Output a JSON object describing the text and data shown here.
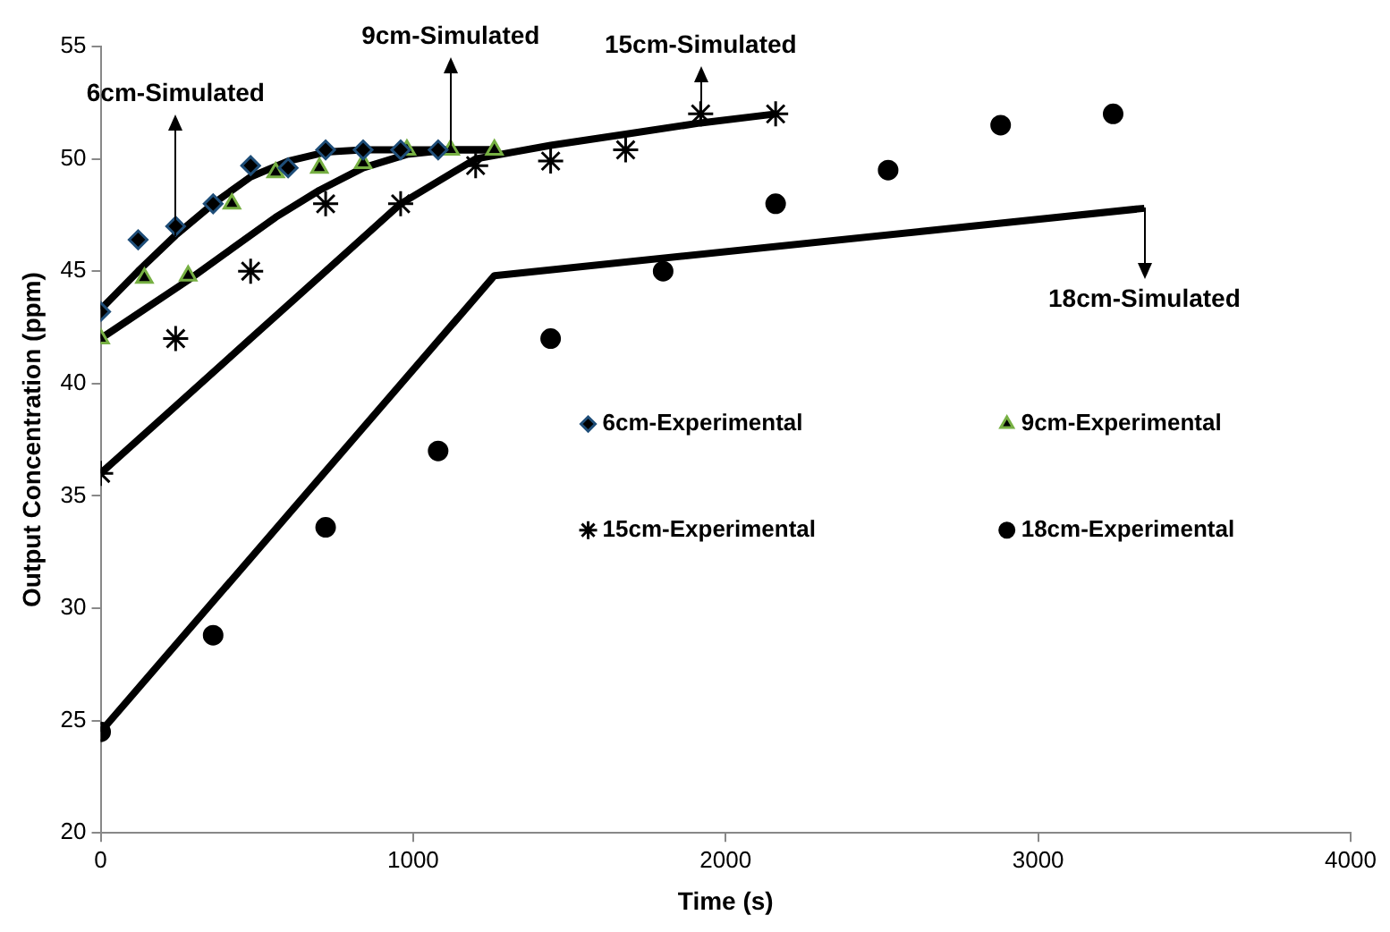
{
  "chart_data": {
    "type": "scatter",
    "xlabel": "Time (s)",
    "ylabel": "Output Concentration (ppm)",
    "xlim": [
      0,
      4000
    ],
    "xticks": [
      0,
      1000,
      2000,
      3000,
      4000
    ],
    "ylim": [
      20,
      55
    ],
    "yticks": [
      20,
      25,
      30,
      35,
      40,
      45,
      50,
      55
    ],
    "grid": false,
    "legend": "right",
    "series": [
      {
        "name": "6cm-Experimental",
        "marker": "diamond",
        "color": "#1f4e79",
        "x": [
          0,
          120,
          240,
          360,
          480,
          600,
          720,
          840,
          960,
          1080
        ],
        "values": [
          43.2,
          46.4,
          47,
          48,
          49.7,
          49.6,
          50.4,
          50.4,
          50.4,
          50.4
        ]
      },
      {
        "name": "9cm-Experimental",
        "marker": "triangle",
        "color": "#77b043",
        "x": [
          0,
          140,
          280,
          420,
          560,
          700,
          840,
          980,
          1120,
          1260
        ],
        "values": [
          42,
          44.7,
          44.8,
          48,
          49.4,
          49.6,
          49.8,
          50.4,
          50.4,
          50.4
        ]
      },
      {
        "name": "15cm-Experimental",
        "marker": "cross",
        "color": "#000000",
        "x": [
          0,
          240,
          480,
          720,
          960,
          1200,
          1440,
          1680,
          1920,
          2160
        ],
        "values": [
          36,
          42,
          45,
          48,
          48,
          49.7,
          49.9,
          50.4,
          52,
          52
        ]
      },
      {
        "name": "18cm-Experimental",
        "marker": "circle",
        "color": "#000000",
        "x": [
          0,
          360,
          720,
          1080,
          1440,
          1800,
          2160,
          2520,
          2880,
          3240
        ],
        "values": [
          24.5,
          28.8,
          33.6,
          37,
          42,
          45,
          48,
          49.5,
          51.5,
          52
        ]
      },
      {
        "name": "6cm-Simulated",
        "type": "line",
        "marker": "none",
        "color": "#000000",
        "x": [
          0,
          120,
          240,
          360,
          480,
          600,
          720,
          840,
          1080,
          1260
        ],
        "values": [
          43.3,
          45,
          46.6,
          48,
          49.2,
          49.9,
          50.3,
          50.4,
          50.4,
          50.4
        ]
      },
      {
        "name": "9cm-Simulated",
        "type": "line",
        "marker": "none",
        "color": "#000000",
        "x": [
          0,
          140,
          280,
          420,
          560,
          700,
          840,
          980,
          1120,
          1260
        ],
        "values": [
          42,
          43.3,
          44.6,
          46,
          47.4,
          48.6,
          49.6,
          50.2,
          50.4,
          50.4
        ]
      },
      {
        "name": "15cm-Simulated",
        "type": "line",
        "marker": "none",
        "color": "#000000",
        "x": [
          0,
          240,
          480,
          720,
          960,
          1200,
          1440,
          1680,
          1920,
          2160
        ],
        "values": [
          36,
          39,
          42,
          45,
          48,
          50,
          50.6,
          51.1,
          51.6,
          52
        ]
      },
      {
        "name": "18cm-Simulated",
        "type": "line",
        "marker": "none",
        "color": "#000000",
        "x": [
          0,
          1260,
          3340
        ],
        "values": [
          24.5,
          44.8,
          47.8
        ]
      }
    ]
  }
}
